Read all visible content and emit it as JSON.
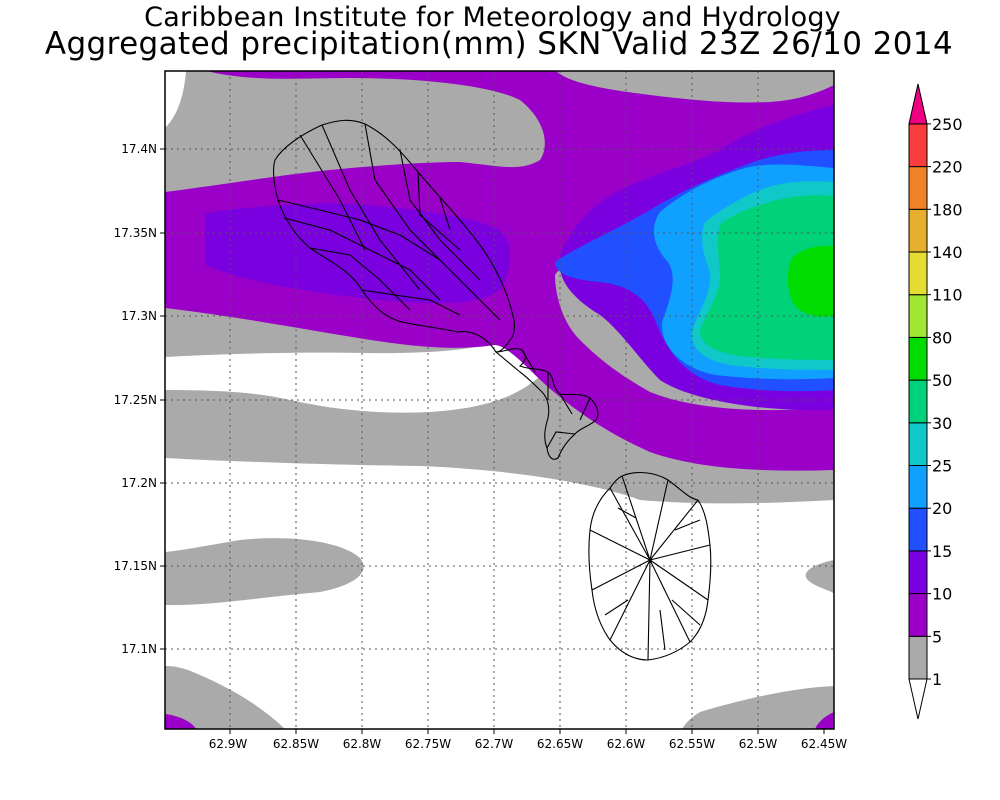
{
  "header": {
    "title": "Caribbean Institute for Meteorology and Hydrology",
    "subtitle": "Aggregated precipitation(mm) SKN Valid 23Z 26/10 2014"
  },
  "axes": {
    "x_ticks": [
      "62.9W",
      "62.85W",
      "62.8W",
      "62.75W",
      "62.7W",
      "62.65W",
      "62.6W",
      "62.55W",
      "62.5W",
      "62.45W"
    ],
    "y_ticks": [
      "17.4N",
      "17.35N",
      "17.3N",
      "17.25N",
      "17.2N",
      "17.15N",
      "17.1N"
    ]
  },
  "colorbar": {
    "levels": [
      {
        "label": "1",
        "color": "#ffffff"
      },
      {
        "label": "5",
        "color": "#aaaaaa"
      },
      {
        "label": "10",
        "color": "#9b00c8"
      },
      {
        "label": "15",
        "color": "#7a00e0"
      },
      {
        "label": "20",
        "color": "#2050ff"
      },
      {
        "label": "25",
        "color": "#10a0ff"
      },
      {
        "label": "30",
        "color": "#10c8c8"
      },
      {
        "label": "50",
        "color": "#00d27a"
      },
      {
        "label": "80",
        "color": "#00dc00"
      },
      {
        "label": "110",
        "color": "#a0e632"
      },
      {
        "label": "140",
        "color": "#e6dc32"
      },
      {
        "label": "180",
        "color": "#e6af2d"
      },
      {
        "label": "220",
        "color": "#f08228"
      },
      {
        "label": "250",
        "color": "#fa3c3c"
      },
      {
        "label": "",
        "color": "#f00082"
      }
    ]
  }
}
